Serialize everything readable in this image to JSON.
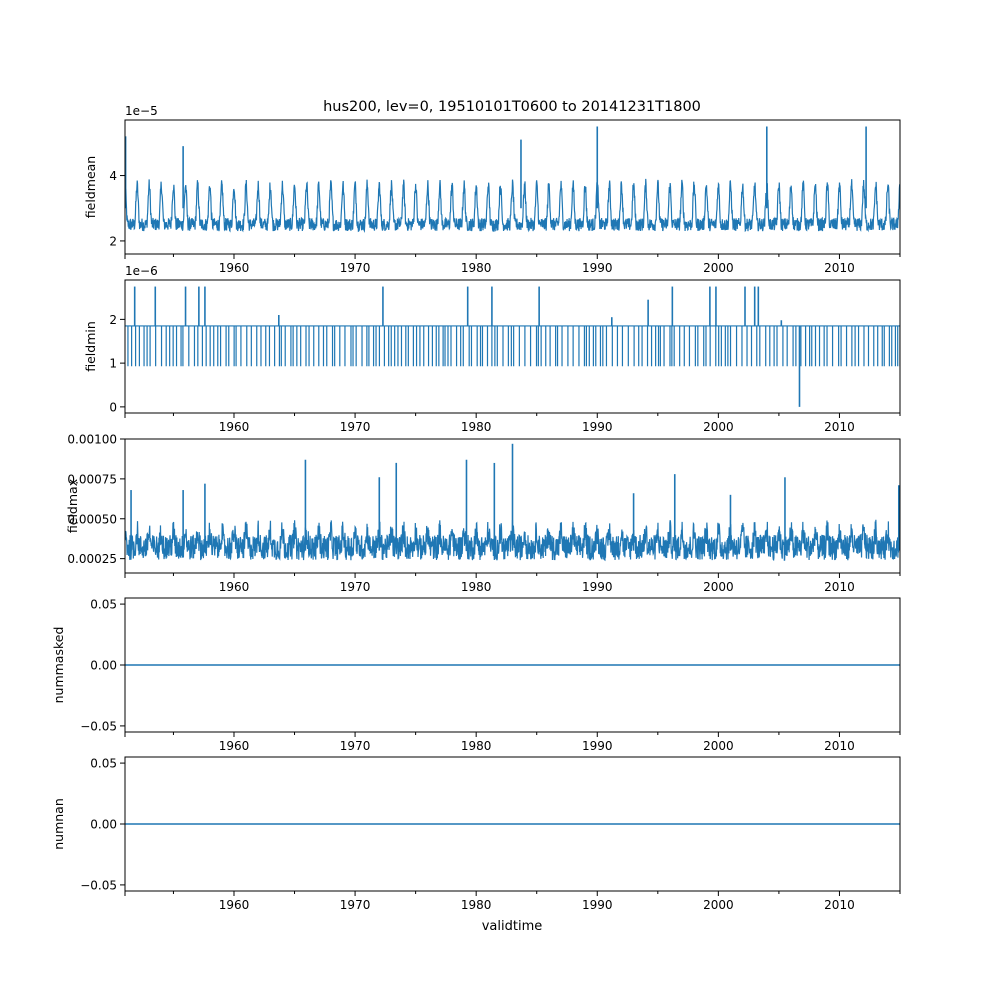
{
  "title": "hus200, lev=0, 19510101T0600 to 20141231T1800",
  "xlabel": "validtime",
  "colors": {
    "series": "#1f77b4",
    "axes": "#000000",
    "background": "#ffffff"
  },
  "chart_data": [
    {
      "type": "line",
      "ylabel": "fieldmean",
      "offset_label": "1e−5",
      "x_range": [
        1951.0,
        2015.0
      ],
      "x_ticks": [
        1960,
        1970,
        1980,
        1990,
        2000,
        2010
      ],
      "ylim": [
        1.6e-05,
        5.7e-05
      ],
      "y_ticks": [
        {
          "value": 2e-05,
          "label": "2"
        },
        {
          "value": 4e-05,
          "label": "4"
        }
      ],
      "series": [
        {
          "style": "seasonal",
          "baseline": 2.4e-05,
          "amplitude": 1.2e-05,
          "noise": 4.5e-06,
          "peak_phase": 0.0,
          "spikes": [
            [
              1951.05,
              5.2e-05
            ],
            [
              1990.0,
              5.5e-05
            ],
            [
              2004.0,
              5.5e-05
            ],
            [
              2012.2,
              5.5e-05
            ],
            [
              1955.8,
              4.9e-05
            ],
            [
              1983.7,
              5.1e-05
            ]
          ]
        }
      ]
    },
    {
      "type": "line",
      "ylabel": "fieldmin",
      "offset_label": "1e−6",
      "x_range": [
        1951.0,
        2015.0
      ],
      "x_ticks": [
        1960,
        1970,
        1980,
        1990,
        2000,
        2010
      ],
      "ylim": [
        -1.4e-07,
        2.9e-06
      ],
      "y_ticks": [
        {
          "value": 0,
          "label": "0"
        },
        {
          "value": 1e-06,
          "label": "1"
        },
        {
          "value": 2e-06,
          "label": "2"
        }
      ],
      "series": [
        {
          "style": "twolevel",
          "high": 1.85e-06,
          "low": 9.3e-07,
          "spikes": [
            [
              1951.8,
              2.75e-06
            ],
            [
              1953.5,
              2.75e-06
            ],
            [
              1956.0,
              2.75e-06
            ],
            [
              1957.1,
              2.75e-06
            ],
            [
              1957.6,
              2.75e-06
            ],
            [
              1963.7,
              2.1e-06
            ],
            [
              1972.3,
              2.75e-06
            ],
            [
              1979.3,
              2.75e-06
            ],
            [
              1981.3,
              2.75e-06
            ],
            [
              1985.2,
              2.75e-06
            ],
            [
              1991.2,
              2.05e-06
            ],
            [
              1994.2,
              2.45e-06
            ],
            [
              1996.2,
              2.75e-06
            ],
            [
              1999.3,
              2.75e-06
            ],
            [
              1999.8,
              2.75e-06
            ],
            [
              2002.2,
              2.75e-06
            ],
            [
              2003.0,
              2.75e-06
            ],
            [
              2003.3,
              2.75e-06
            ],
            [
              2005.2,
              1.98e-06
            ],
            [
              2006.7,
              0.0
            ]
          ]
        }
      ]
    },
    {
      "type": "line",
      "ylabel": "fieldmax",
      "offset_label": "",
      "x_range": [
        1951.0,
        2015.0
      ],
      "x_ticks": [
        1960,
        1970,
        1980,
        1990,
        2000,
        2010
      ],
      "ylim": [
        0.00016,
        0.001
      ],
      "y_ticks": [
        {
          "value": 0.00025,
          "label": "0.00025"
        },
        {
          "value": 0.0005,
          "label": "0.00050"
        },
        {
          "value": 0.00075,
          "label": "0.00075"
        },
        {
          "value": 0.001,
          "label": "0.00100"
        }
      ],
      "series": [
        {
          "style": "noisy",
          "baseline": 0.00024,
          "amplitude": 0.00012,
          "noise": 0.00016,
          "spikes": [
            [
              1951.5,
              0.00068
            ],
            [
              1955.8,
              0.00068
            ],
            [
              1957.6,
              0.00072
            ],
            [
              1965.9,
              0.00087
            ],
            [
              1972.0,
              0.00076
            ],
            [
              1973.4,
              0.00085
            ],
            [
              1979.2,
              0.00087
            ],
            [
              1981.5,
              0.00085
            ],
            [
              1983.0,
              0.00097
            ],
            [
              1996.4,
              0.00078
            ],
            [
              2005.5,
              0.00076
            ],
            [
              2014.9,
              0.00071
            ],
            [
              1993.0,
              0.00066
            ],
            [
              2001.0,
              0.00065
            ]
          ]
        }
      ]
    },
    {
      "type": "line",
      "ylabel": "nummasked",
      "offset_label": "",
      "x_range": [
        1951.0,
        2015.0
      ],
      "x_ticks": [
        1960,
        1970,
        1980,
        1990,
        2000,
        2010
      ],
      "ylim": [
        -0.055,
        0.055
      ],
      "y_ticks": [
        {
          "value": -0.05,
          "label": "−0.05"
        },
        {
          "value": 0.0,
          "label": "0.00"
        },
        {
          "value": 0.05,
          "label": "0.05"
        }
      ],
      "series": [
        {
          "style": "constant",
          "value": 0.0
        }
      ]
    },
    {
      "type": "line",
      "ylabel": "numnan",
      "offset_label": "",
      "x_range": [
        1951.0,
        2015.0
      ],
      "x_ticks": [
        1960,
        1970,
        1980,
        1990,
        2000,
        2010
      ],
      "ylim": [
        -0.055,
        0.055
      ],
      "y_ticks": [
        {
          "value": -0.05,
          "label": "−0.05"
        },
        {
          "value": 0.0,
          "label": "0.00"
        },
        {
          "value": 0.05,
          "label": "0.05"
        }
      ],
      "series": [
        {
          "style": "constant",
          "value": 0.0
        }
      ]
    }
  ]
}
